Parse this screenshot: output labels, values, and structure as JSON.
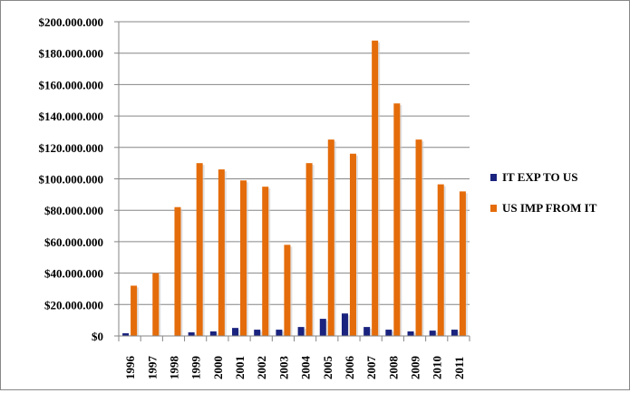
{
  "chart_data": {
    "type": "bar",
    "title": "",
    "xlabel": "",
    "ylabel": "",
    "ylim": [
      0,
      200000000
    ],
    "y_ticks": [
      "$0",
      "$20.000.000",
      "$40.000.000",
      "$60.000.000",
      "$80.000.000",
      "$100.000.000",
      "$120.000.000",
      "$140.000.000",
      "$160.000.000",
      "$180.000.000",
      "$200.000.000"
    ],
    "grid": true,
    "legend_position": "right",
    "categories": [
      "1996",
      "1997",
      "1998",
      "1999",
      "2000",
      "2001",
      "2002",
      "2003",
      "2004",
      "2005",
      "2006",
      "2007",
      "2008",
      "2009",
      "2010",
      "2011"
    ],
    "series": [
      {
        "name": "IT EXP TO US",
        "color": "#1a237e",
        "values": [
          1700000,
          0,
          0,
          2300000,
          2900000,
          5100000,
          4000000,
          4000000,
          5700000,
          10900000,
          14300000,
          5700000,
          4000000,
          2900000,
          3400000,
          4000000
        ]
      },
      {
        "name": "US IMP FROM IT",
        "color": "#e46c0a",
        "values": [
          32000000,
          40000000,
          82000000,
          110000000,
          106000000,
          99000000,
          95000000,
          58000000,
          110000000,
          125000000,
          116000000,
          188000000,
          148000000,
          125000000,
          96500000,
          92000000
        ]
      }
    ]
  }
}
